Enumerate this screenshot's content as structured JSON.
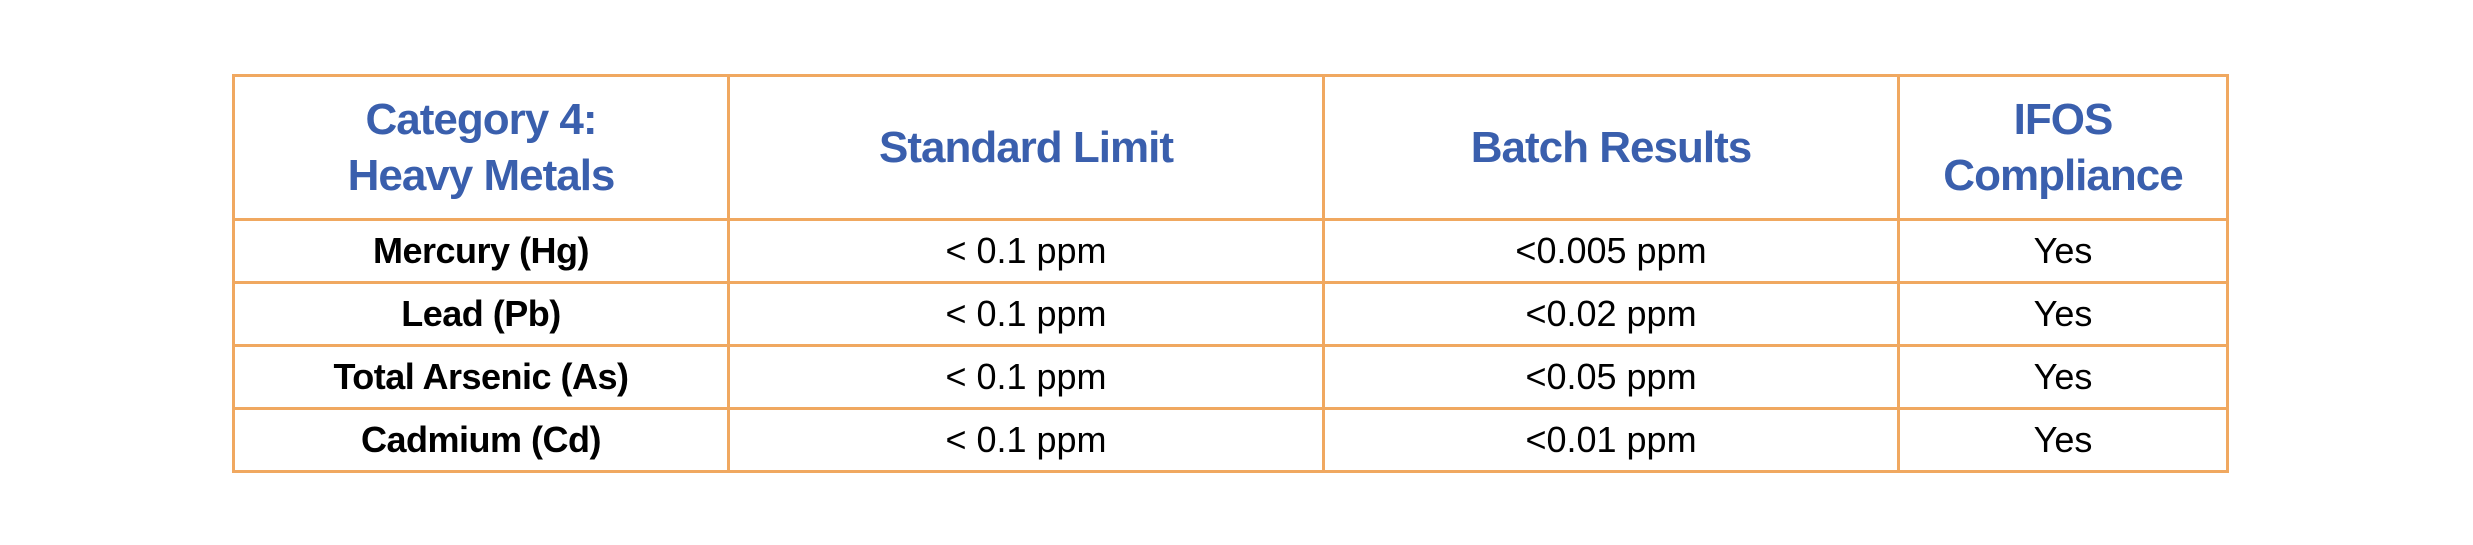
{
  "table": {
    "headers": {
      "category_line1": "Category 4:",
      "category_line2": "Heavy Metals",
      "standard_limit": "Standard Limit",
      "batch_results": "Batch Results",
      "compliance_line1": "IFOS",
      "compliance_line2": "Compliance"
    },
    "rows": [
      {
        "metal": "Mercury (Hg)",
        "limit": "< 0.1 ppm",
        "result": "<0.005 ppm",
        "compliance": "Yes"
      },
      {
        "metal": "Lead (Pb)",
        "limit": "< 0.1 ppm",
        "result": "<0.02 ppm",
        "compliance": "Yes"
      },
      {
        "metal": "Total Arsenic (As)",
        "limit": "< 0.1 ppm",
        "result": "<0.05 ppm",
        "compliance": "Yes"
      },
      {
        "metal": "Cadmium (Cd)",
        "limit": "< 0.1 ppm",
        "result": "<0.01 ppm",
        "compliance": "Yes"
      }
    ],
    "colors": {
      "header_text": "#3a5fad",
      "border": "#f0a860"
    }
  }
}
